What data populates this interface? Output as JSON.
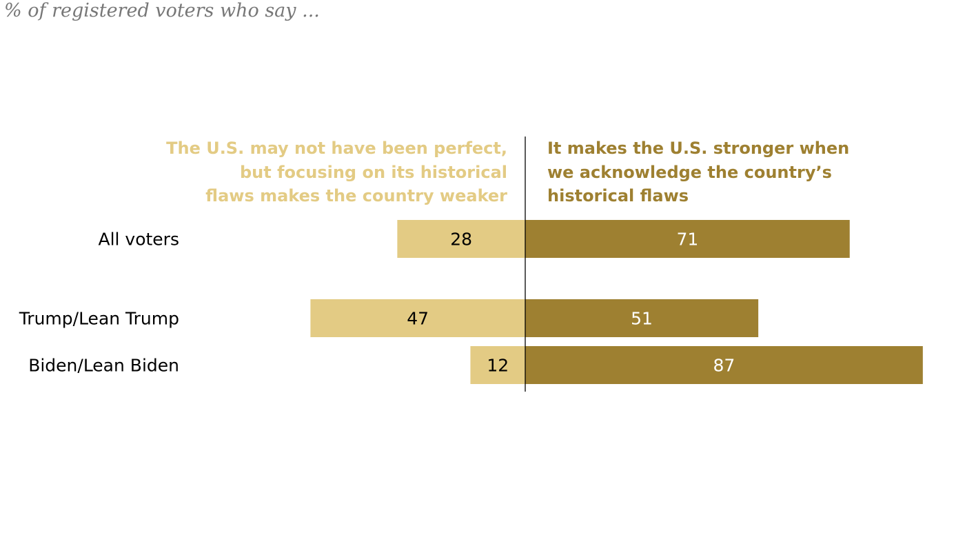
{
  "subtitle": "% of registered voters who say ...",
  "colors": {
    "weaker": "#E3CB84",
    "stronger": "#9E8031",
    "label_text": "#000000",
    "value_on_light": "#000000",
    "value_on_dark": "#ffffff"
  },
  "chart_data": {
    "type": "bar",
    "orientation": "horizontal-diverging",
    "categories": [
      "All voters",
      "Trump/Lean Trump",
      "Biden/Lean Biden"
    ],
    "series": [
      {
        "name_lines": [
          "The U.S. may not have been perfect,",
          "but focusing on its historical",
          "flaws makes the country weaker"
        ],
        "values": [
          28,
          47,
          12
        ],
        "color": "#E3CB84",
        "direction": "left"
      },
      {
        "name_lines": [
          "It makes the U.S. stronger when",
          "we acknowledge the country’s",
          "historical flaws"
        ],
        "values": [
          71,
          51,
          87
        ],
        "color": "#9E8031",
        "direction": "right"
      }
    ],
    "group_gap_after": [
      0
    ]
  }
}
